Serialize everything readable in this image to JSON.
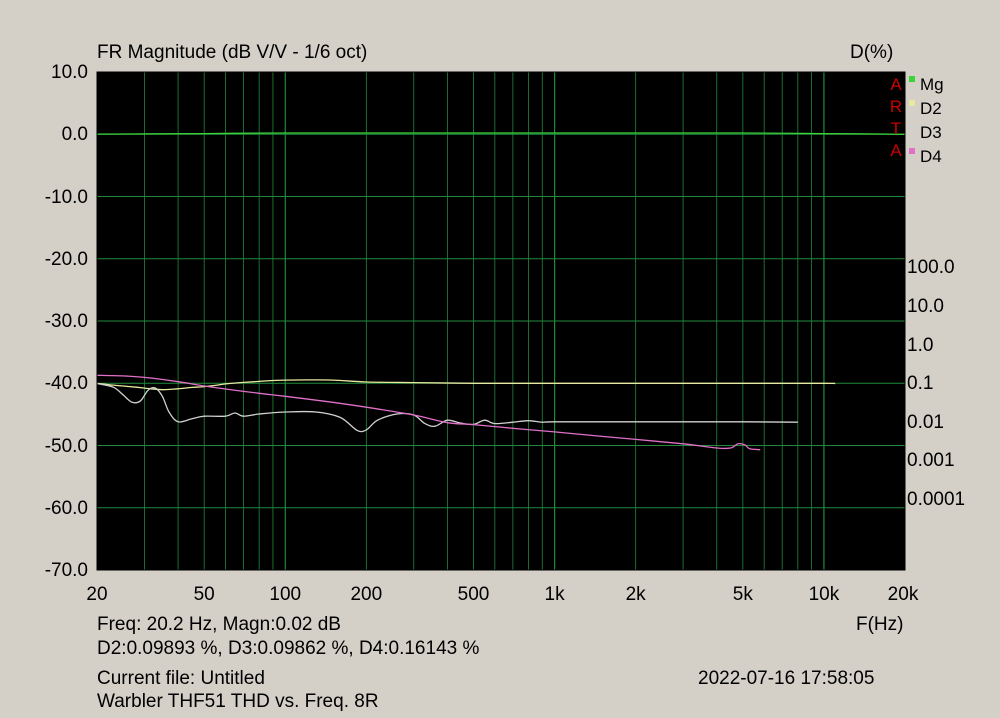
{
  "header": {
    "title": "FR Magnitude (dB V/V - 1/6 oct)",
    "right_axis_title": "D(%)"
  },
  "arta_letters": [
    "A",
    "R",
    "T",
    "A"
  ],
  "footer": {
    "readout_line1": "Freq: 20.2 Hz, Magn:0.02 dB",
    "readout_line2": "D2:0.09893 %, D3:0.09862 %, D4:0.16143 %",
    "x_unit": "F(Hz)",
    "current_file": "Current file: Untitled",
    "timestamp": "2022-07-16   17:58:05",
    "description": "Warbler THF51 THD vs. Freq. 8R"
  },
  "colors": {
    "background": "#d4d0c8",
    "plot_bg": "#000000",
    "grid": "#1f8a3c",
    "mg": "#3cd23c",
    "d2": "#e8e8a0",
    "d3": "#d0d0d0",
    "d4": "#e070c8",
    "arta": "#cc0000"
  },
  "chart_data": {
    "type": "line",
    "title": "FR Magnitude (dB V/V - 1/6 oct)",
    "xlabel": "F(Hz)",
    "ylabel": "",
    "xscale": "log",
    "xlim": [
      20,
      20000
    ],
    "ylim": [
      -70,
      10
    ],
    "y_ticks": [
      "10.0",
      "0.0",
      "-10.0",
      "-20.0",
      "-30.0",
      "-40.0",
      "-50.0",
      "-60.0",
      "-70.0"
    ],
    "x_ticks": [
      {
        "value": 20,
        "label": "20"
      },
      {
        "value": 50,
        "label": "50"
      },
      {
        "value": 100,
        "label": "100"
      },
      {
        "value": 200,
        "label": "200"
      },
      {
        "value": 500,
        "label": "500"
      },
      {
        "value": 1000,
        "label": "1k"
      },
      {
        "value": 2000,
        "label": "2k"
      },
      {
        "value": 5000,
        "label": "5k"
      },
      {
        "value": 10000,
        "label": "10k"
      },
      {
        "value": 20000,
        "label": "20k"
      }
    ],
    "right_axis": {
      "title": "D(%)",
      "scale": "log",
      "ticks": [
        {
          "value": 100,
          "label": "100.0"
        },
        {
          "value": 10,
          "label": "10.0"
        },
        {
          "value": 1,
          "label": "1.0"
        },
        {
          "value": 0.1,
          "label": "0.1"
        },
        {
          "value": 0.01,
          "label": "0.01"
        },
        {
          "value": 0.001,
          "label": "0.001"
        },
        {
          "value": 0.0001,
          "label": "0.0001"
        }
      ]
    },
    "grid": true,
    "legend_position": "top-right",
    "series": [
      {
        "name": "Mg",
        "axis": "left_db",
        "color": "#3cd23c",
        "points": [
          [
            20,
            0.02
          ],
          [
            50,
            0.1
          ],
          [
            100,
            0.2
          ],
          [
            500,
            0.2
          ],
          [
            1000,
            0.2
          ],
          [
            5000,
            0.2
          ],
          [
            10000,
            0.1
          ],
          [
            20000,
            0.0
          ]
        ]
      },
      {
        "name": "D2",
        "axis": "right_pct",
        "color": "#e8e8a0",
        "points": [
          [
            20,
            0.0989
          ],
          [
            22,
            0.092
          ],
          [
            25,
            0.085
          ],
          [
            28,
            0.079
          ],
          [
            30,
            0.075
          ],
          [
            35,
            0.068
          ],
          [
            40,
            0.072
          ],
          [
            45,
            0.078
          ],
          [
            50,
            0.082
          ],
          [
            55,
            0.088
          ],
          [
            60,
            0.096
          ],
          [
            70,
            0.105
          ],
          [
            80,
            0.112
          ],
          [
            90,
            0.118
          ],
          [
            100,
            0.121
          ],
          [
            120,
            0.122
          ],
          [
            150,
            0.121
          ],
          [
            200,
            0.108
          ],
          [
            300,
            0.104
          ],
          [
            500,
            0.1
          ],
          [
            700,
            0.1
          ],
          [
            1000,
            0.1
          ],
          [
            2000,
            0.1
          ],
          [
            5000,
            0.1
          ],
          [
            10000,
            0.1
          ],
          [
            11000,
            0.098
          ]
        ]
      },
      {
        "name": "D3",
        "axis": "right_pct",
        "color": "#d0d0d0",
        "points": [
          [
            20,
            0.0986
          ],
          [
            23,
            0.079
          ],
          [
            25,
            0.05
          ],
          [
            27,
            0.032
          ],
          [
            29,
            0.035
          ],
          [
            31,
            0.067
          ],
          [
            33,
            0.075
          ],
          [
            35,
            0.045
          ],
          [
            37,
            0.018
          ],
          [
            40,
            0.01
          ],
          [
            45,
            0.012
          ],
          [
            50,
            0.014
          ],
          [
            60,
            0.014
          ],
          [
            65,
            0.017
          ],
          [
            70,
            0.014
          ],
          [
            80,
            0.016
          ],
          [
            100,
            0.018
          ],
          [
            130,
            0.018
          ],
          [
            160,
            0.013
          ],
          [
            185,
            0.006
          ],
          [
            200,
            0.0062
          ],
          [
            220,
            0.011
          ],
          [
            260,
            0.016
          ],
          [
            300,
            0.015
          ],
          [
            330,
            0.009
          ],
          [
            360,
            0.0077
          ],
          [
            400,
            0.011
          ],
          [
            450,
            0.0092
          ],
          [
            500,
            0.0086
          ],
          [
            550,
            0.011
          ],
          [
            600,
            0.009
          ],
          [
            700,
            0.0098
          ],
          [
            800,
            0.0107
          ],
          [
            900,
            0.0098
          ],
          [
            1000,
            0.01
          ],
          [
            2000,
            0.01
          ],
          [
            5000,
            0.01
          ],
          [
            8000,
            0.0098
          ]
        ]
      },
      {
        "name": "D4",
        "axis": "right_pct",
        "color": "#e070c8",
        "points": [
          [
            20,
            0.161
          ],
          [
            25,
            0.155
          ],
          [
            30,
            0.142
          ],
          [
            40,
            0.11
          ],
          [
            50,
            0.085
          ],
          [
            60,
            0.071
          ],
          [
            80,
            0.055
          ],
          [
            100,
            0.046
          ],
          [
            150,
            0.032
          ],
          [
            200,
            0.024
          ],
          [
            300,
            0.015
          ],
          [
            400,
            0.0095
          ],
          [
            500,
            0.0085
          ],
          [
            700,
            0.0068
          ],
          [
            1000,
            0.0055
          ],
          [
            1500,
            0.0042
          ],
          [
            2000,
            0.0035
          ],
          [
            3000,
            0.0027
          ],
          [
            4000,
            0.0021
          ],
          [
            4500,
            0.0021
          ],
          [
            4800,
            0.0027
          ],
          [
            5100,
            0.0025
          ],
          [
            5300,
            0.002
          ],
          [
            5800,
            0.0019
          ]
        ]
      }
    ]
  }
}
